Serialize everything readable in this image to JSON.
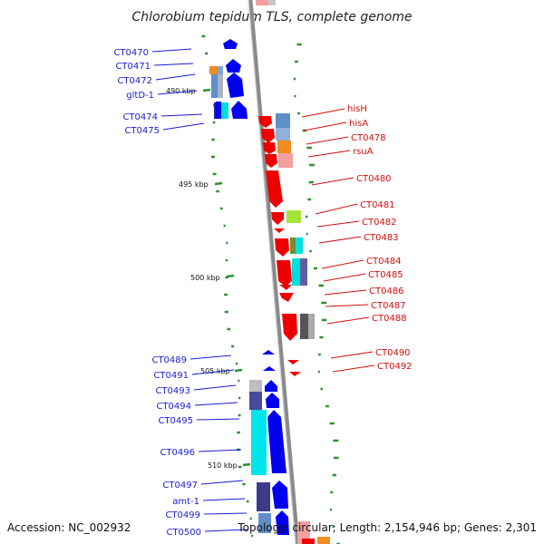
{
  "title": "Chlorobium tepidum TLS, complete genome",
  "footer": {
    "accession": "Accession: NC_002932",
    "summary": "Topology: circular; Length: 2,154,946 bp; Genes: 2,301"
  },
  "scale_labels": [
    "490 kbp",
    "495 kbp",
    "500 kbp",
    "505 kbp",
    "510 kbp"
  ],
  "colors": {
    "forward_strand": "#0000ee",
    "reverse_strand": "#ee0000",
    "left_labels": "#1b1bd0",
    "right_labels": "#d20f0f",
    "backbone": "#8a8a8a",
    "gc_ticks": "#2f8f2f"
  },
  "genes_left": [
    "CT0470",
    "CT0471",
    "CT0472",
    "gltD-1",
    "CT0474",
    "CT0475",
    "CT0489",
    "CT0491",
    "CT0493",
    "CT0494",
    "CT0495",
    "CT0496",
    "CT0497",
    "amt-1",
    "CT0499",
    "CT0500"
  ],
  "genes_right": [
    "hisH",
    "hisA",
    "CT0478",
    "rsuA",
    "CT0480",
    "CT0481",
    "CT0482",
    "CT0483",
    "CT0484",
    "CT0485",
    "CT0486",
    "CT0487",
    "CT0488",
    "CT0490",
    "CT0492"
  ]
}
